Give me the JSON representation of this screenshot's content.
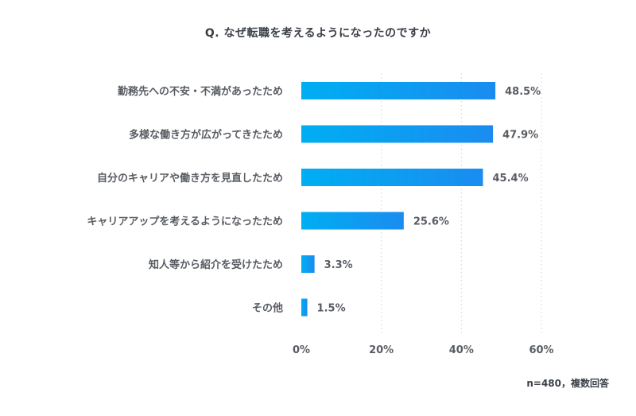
{
  "chart_data": {
    "type": "bar",
    "orientation": "horizontal",
    "title": "Q. なぜ転職を考えるようになったのですか",
    "categories": [
      "勤務先への不安・不満があったため",
      "多様な働き方が広がってきたため",
      "自分のキャリアや働き方を見直したため",
      "キャリアアップを考えるようになったため",
      "知人等から紹介を受けたため",
      "その他"
    ],
    "values": [
      48.5,
      47.9,
      45.4,
      25.6,
      3.3,
      1.5
    ],
    "value_labels": [
      "48.5%",
      "47.9%",
      "45.4%",
      "25.6%",
      "3.3%",
      "1.5%"
    ],
    "xlim": [
      0,
      60
    ],
    "ticks": [
      0,
      20,
      40,
      60
    ],
    "tick_labels": [
      "0%",
      "20%",
      "40%",
      "60%"
    ],
    "grid": true,
    "footnote": "n=480，複数回答",
    "colors": {
      "bar_start": "#00aef2",
      "bar_end": "#1a8cf0",
      "text": "#595d63",
      "grid": "#cfd3d8"
    }
  }
}
